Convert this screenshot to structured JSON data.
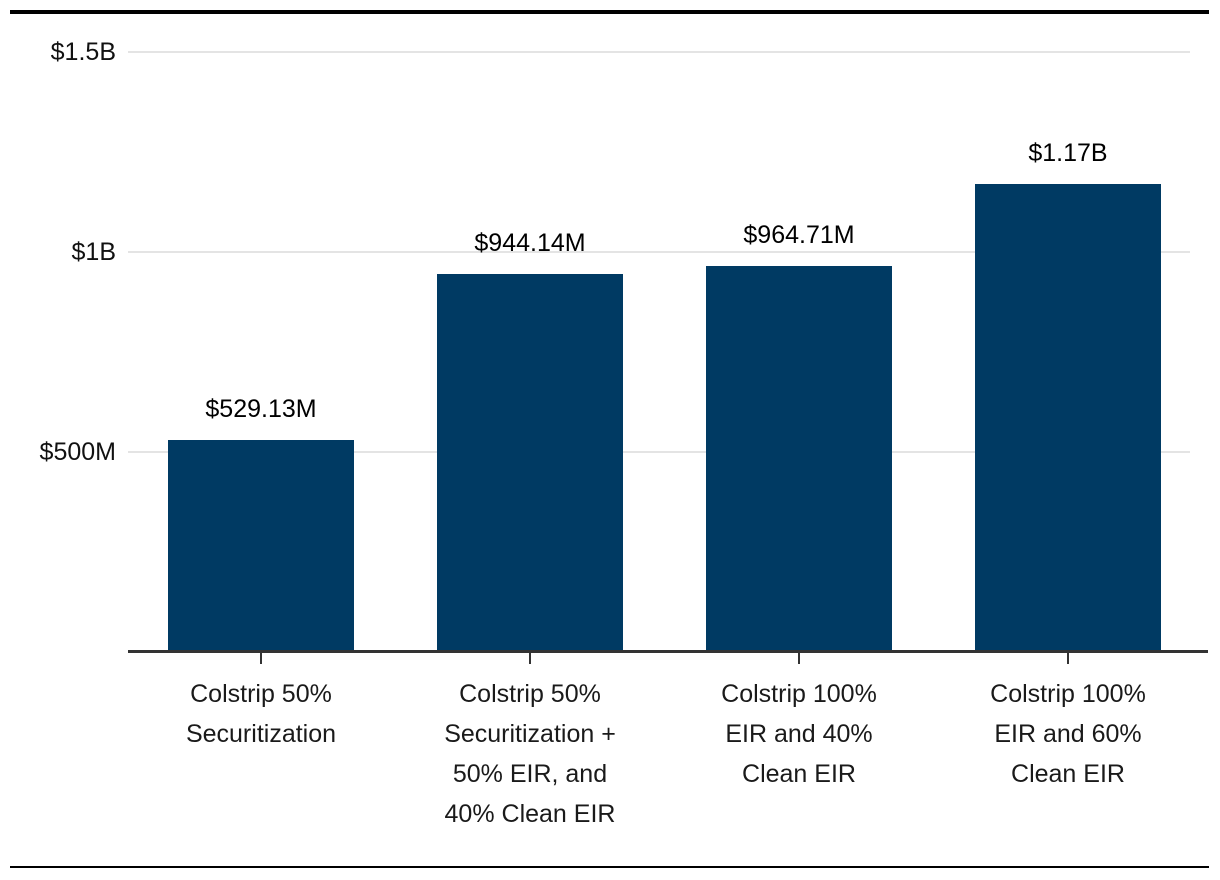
{
  "page": {
    "background": "#ffffff"
  },
  "decorations": {
    "top_rule_color": "#000000",
    "bottom_rule_color": "#000000"
  },
  "colors": {
    "bar": "#003a63",
    "gridline": "#e4e4e4",
    "axis": "#333333",
    "value_label_text": "#000000",
    "category_label_text": "#1a1a1a",
    "ytick_text": "#111111"
  },
  "chart_data": {
    "type": "bar",
    "title": "",
    "xlabel": "",
    "ylabel": "",
    "unit": "USD (labels shown in $M / $B)",
    "grid": true,
    "legend": "none",
    "ylim": [
      0,
      1500
    ],
    "categories": [
      "Colstrip 50% Securitization",
      "Colstrip 50% Securitization + 50% EIR, and 40% Clean EIR",
      "Colstrip 100% EIR and 40% Clean EIR",
      "Colstrip 100% EIR and 60% Clean EIR"
    ],
    "x_tick_labels_multiline": [
      "Colstrip 50%\nSecuritization",
      "Colstrip 50%\nSecuritization +\n50% EIR, and\n40% Clean EIR",
      "Colstrip 100%\nEIR and 40%\nClean EIR",
      "Colstrip 100%\nEIR and 60%\nClean EIR"
    ],
    "values": [
      529.13,
      944.14,
      964.71,
      1170
    ],
    "value_labels": [
      "$529.13M",
      "$944.14M",
      "$964.71M",
      "$1.17B"
    ],
    "y_ticks": [
      {
        "label": "$1.5B",
        "value": 1500
      },
      {
        "label": "$1B",
        "value": 1000
      },
      {
        "label": "$500M",
        "value": 500
      }
    ]
  }
}
